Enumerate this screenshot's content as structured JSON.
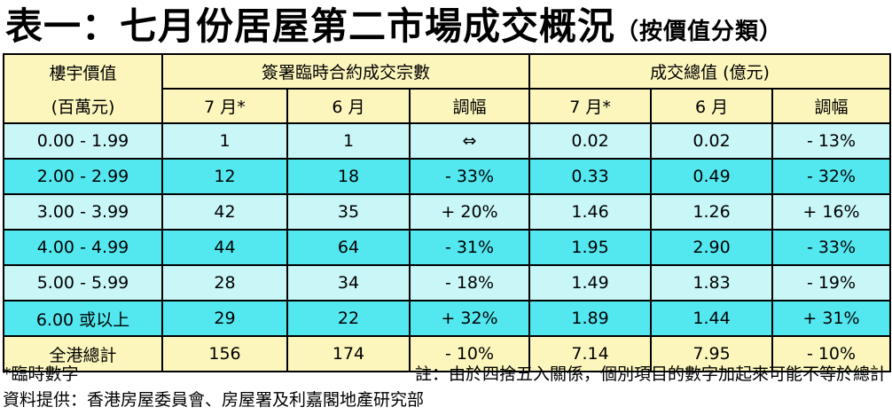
{
  "title": "表一：七月份居屋第二市場成交概況",
  "subtitle": "（按價值分類）",
  "header": {
    "price_label_1": "樓宇價值",
    "price_label_2": "(百萬元)",
    "group_count": "簽署臨時合約成交宗數",
    "group_value": "成交總值 (億元)",
    "col_jul": "7 月*",
    "col_jun": "6 月",
    "col_change": "調幅"
  },
  "rows": [
    {
      "range": "0.00 - 1.99",
      "cnt_jul": "1",
      "cnt_jun": "1",
      "cnt_chg": "⇔",
      "val_jul": "0.02",
      "val_jun": "0.02",
      "val_chg": "- 13%"
    },
    {
      "range": "2.00 - 2.99",
      "cnt_jul": "12",
      "cnt_jun": "18",
      "cnt_chg": "- 33%",
      "val_jul": "0.33",
      "val_jun": "0.49",
      "val_chg": "- 32%"
    },
    {
      "range": "3.00 - 3.99",
      "cnt_jul": "42",
      "cnt_jun": "35",
      "cnt_chg": "+ 20%",
      "val_jul": "1.46",
      "val_jun": "1.26",
      "val_chg": "+ 16%"
    },
    {
      "range": "4.00 - 4.99",
      "cnt_jul": "44",
      "cnt_jun": "64",
      "cnt_chg": "- 31%",
      "val_jul": "1.95",
      "val_jun": "2.90",
      "val_chg": "- 33%"
    },
    {
      "range": "5.00 - 5.99",
      "cnt_jul": "28",
      "cnt_jun": "34",
      "cnt_chg": "- 18%",
      "val_jul": "1.49",
      "val_jun": "1.83",
      "val_chg": "- 19%"
    },
    {
      "range": "6.00 或以上",
      "cnt_jul": "29",
      "cnt_jun": "22",
      "cnt_chg": "+ 32%",
      "val_jul": "1.89",
      "val_jun": "1.44",
      "val_chg": "+ 31%"
    }
  ],
  "total": {
    "range": "全港總計",
    "cnt_jul": "156",
    "cnt_jun": "174",
    "cnt_chg": "- 10%",
    "val_jul": "7.14",
    "val_jun": "7.95",
    "val_chg": "- 10%"
  },
  "footnotes": {
    "provisional": "*臨時數字",
    "rounding": "註：由於四捨五入關係，個別項目的數字加起來可能不等於總計",
    "source": "資料提供：香港房屋委員會、房屋署及利嘉閣地產研究部"
  },
  "colors": {
    "header_bg": "#fcf6bd",
    "row_light": "#c9f6f7",
    "row_dark": "#53e8f0"
  }
}
